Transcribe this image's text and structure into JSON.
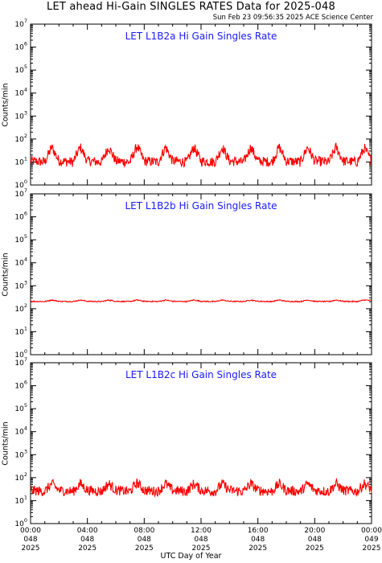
{
  "header": {
    "title": "LET ahead Hi-Gain SINGLES RATES Data for 2025-048",
    "timestamp": "Sun Feb 23 09:56:35 2025 ACE Science Center"
  },
  "colors": {
    "series": "#ff0000",
    "panel_title": "#1a1aff",
    "axis": "#000000"
  },
  "chart_data": [
    {
      "type": "line",
      "title": "LET L1B2a Hi Gain Singles Rate",
      "xlabel": "UTC Day of Year",
      "ylabel": "Counts/min",
      "yscale": "log",
      "ylim": [
        1,
        10000000
      ],
      "xlim": [
        0,
        24
      ],
      "y_tick_labels": [
        "10^0",
        "10^1",
        "10^2",
        "10^3",
        "10^4",
        "10^5",
        "10^6",
        "10^7"
      ],
      "series": [
        {
          "x": [
            0,
            1,
            1.5,
            2,
            3,
            3.5,
            4,
            5,
            5.5,
            6,
            7,
            7.5,
            8,
            9,
            9.5,
            10,
            11,
            11.5,
            12,
            13,
            13.5,
            14,
            15,
            15.5,
            16,
            17,
            17.5,
            18,
            19,
            19.5,
            20,
            21,
            21.5,
            22,
            23,
            23.5,
            24
          ],
          "values": [
            11,
            10,
            45,
            11,
            10,
            45,
            11,
            10,
            45,
            11,
            10,
            50,
            11,
            10,
            45,
            11,
            10,
            45,
            11,
            10,
            45,
            11,
            10,
            45,
            11,
            10,
            45,
            11,
            10,
            45,
            11,
            10,
            45,
            11,
            10,
            40,
            11
          ]
        }
      ]
    },
    {
      "type": "line",
      "title": "LET L1B2b Hi Gain Singles Rate",
      "xlabel": "UTC Day of Year",
      "ylabel": "Counts/min",
      "yscale": "log",
      "ylim": [
        1,
        10000000
      ],
      "xlim": [
        0,
        24
      ],
      "y_tick_labels": [
        "10^0",
        "10^1",
        "10^2",
        "10^3",
        "10^4",
        "10^5",
        "10^6",
        "10^7"
      ],
      "series": [
        {
          "x": [
            0,
            1,
            1.5,
            2,
            3,
            3.5,
            4,
            5,
            5.5,
            6,
            7,
            7.5,
            8,
            9,
            9.5,
            10,
            11,
            11.5,
            12,
            13,
            13.5,
            14,
            15,
            15.5,
            16,
            17,
            17.5,
            18,
            19,
            19.5,
            20,
            21,
            21.5,
            22,
            23,
            23.5,
            24
          ],
          "values": [
            210,
            205,
            240,
            210,
            205,
            240,
            210,
            205,
            240,
            210,
            205,
            240,
            210,
            205,
            240,
            210,
            205,
            240,
            210,
            205,
            240,
            210,
            205,
            240,
            210,
            205,
            240,
            210,
            205,
            240,
            210,
            205,
            240,
            210,
            205,
            240,
            230
          ]
        }
      ]
    },
    {
      "type": "line",
      "title": "LET L1B2c Hi Gain Singles Rate",
      "xlabel": "UTC Day of Year",
      "ylabel": "Counts/min",
      "yscale": "log",
      "ylim": [
        1,
        10000000
      ],
      "xlim": [
        0,
        24
      ],
      "y_tick_labels": [
        "10^0",
        "10^1",
        "10^2",
        "10^3",
        "10^4",
        "10^5",
        "10^6",
        "10^7"
      ],
      "x_tick_labels": [
        {
          "time": "00:00",
          "doy": "048",
          "year": "2025"
        },
        {
          "time": "04:00",
          "doy": "048",
          "year": "2025"
        },
        {
          "time": "08:00",
          "doy": "048",
          "year": "2025"
        },
        {
          "time": "12:00",
          "doy": "048",
          "year": "2025"
        },
        {
          "time": "16:00",
          "doy": "048",
          "year": "2025"
        },
        {
          "time": "20:00",
          "doy": "048",
          "year": "2025"
        },
        {
          "time": "00:00",
          "doy": "049",
          "year": "2025"
        }
      ],
      "series": [
        {
          "x": [
            0,
            1,
            1.5,
            2,
            3,
            3.5,
            4,
            5,
            5.5,
            6,
            7,
            7.5,
            8,
            9,
            9.5,
            10,
            11,
            11.5,
            12,
            13,
            13.5,
            14,
            15,
            15.5,
            16,
            17,
            17.5,
            18,
            19,
            19.5,
            20,
            21,
            21.5,
            22,
            23,
            23.5,
            24
          ],
          "values": [
            28,
            25,
            55,
            28,
            25,
            55,
            28,
            25,
            55,
            28,
            25,
            60,
            28,
            25,
            55,
            28,
            25,
            55,
            28,
            25,
            55,
            28,
            25,
            55,
            28,
            25,
            55,
            28,
            25,
            55,
            28,
            25,
            55,
            28,
            25,
            55,
            30
          ]
        }
      ]
    }
  ]
}
